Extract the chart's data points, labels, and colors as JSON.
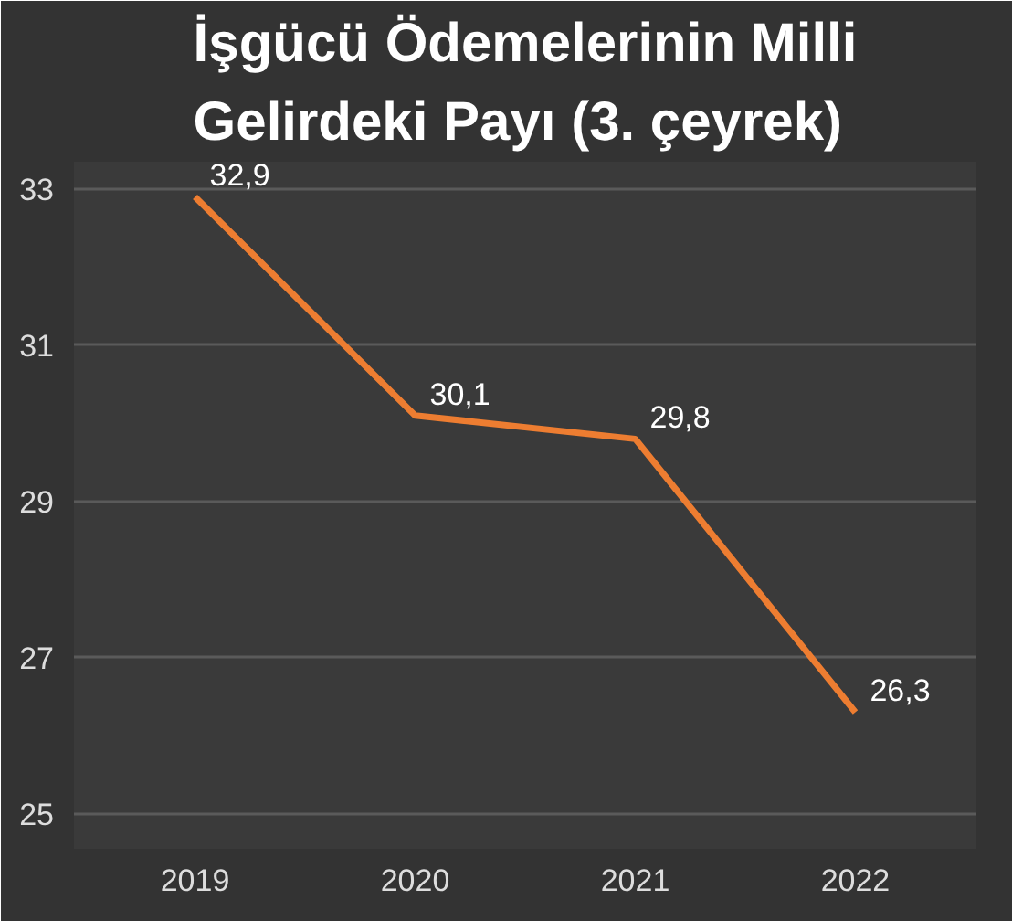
{
  "chart_data": {
    "type": "line",
    "title": "İşgücü Ödemelerinin Milli\nGelirdeki Payı (3. çeyrek)",
    "categories": [
      "2019",
      "2020",
      "2021",
      "2022"
    ],
    "series": [
      {
        "color": "#ed7d31",
        "values": [
          32.9,
          30.1,
          29.8,
          26.3
        ]
      }
    ],
    "value_labels": [
      "32,9",
      "30,1",
      "29,8",
      "26,3"
    ],
    "ylim": [
      25,
      33
    ],
    "yticks": [
      25,
      27,
      29,
      31,
      33
    ],
    "grid": "y",
    "marker": "none",
    "line_style": "solid"
  }
}
